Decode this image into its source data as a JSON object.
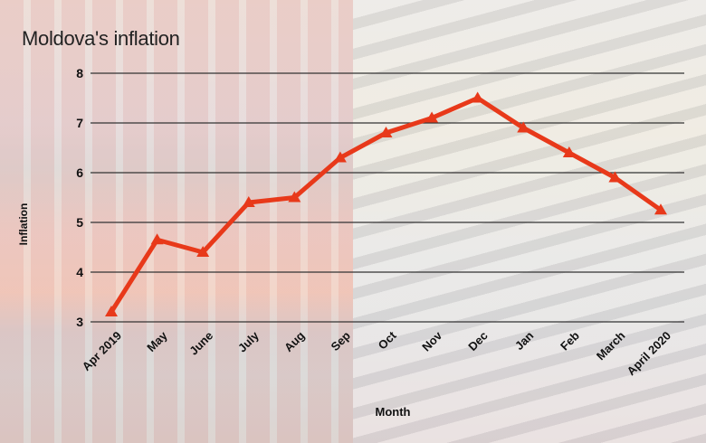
{
  "title": "Moldova's inflation",
  "colors": {
    "line": "#e8391a",
    "grid": "#333333",
    "text": "#111111"
  },
  "chart_data": {
    "type": "line",
    "title": "Moldova's inflation",
    "xlabel": "Month",
    "ylabel": "Inflation",
    "ylim": [
      3,
      8
    ],
    "yticks": [
      3,
      4,
      5,
      6,
      7,
      8
    ],
    "grid": true,
    "legend": "none",
    "categories": [
      "Apr 2019",
      "May",
      "June",
      "July",
      "Aug",
      "Sep",
      "Oct",
      "Nov",
      "Dec",
      "Jan",
      "Feb",
      "March",
      "April 2020"
    ],
    "series": [
      {
        "name": "Inflation",
        "values": [
          3.2,
          4.65,
          4.4,
          5.4,
          5.5,
          6.3,
          6.8,
          7.1,
          7.5,
          6.9,
          6.4,
          5.9,
          5.25
        ]
      }
    ]
  }
}
